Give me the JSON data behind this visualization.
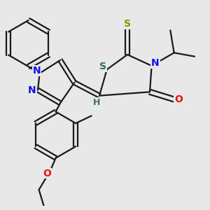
{
  "bg_color": "#e8e8e8",
  "bond_color": "#1a1a1a",
  "bond_width": 1.6,
  "atom_colors": {
    "N": "#1010ee",
    "O": "#ee1010",
    "S_thioxo": "#909000",
    "S_ring": "#207070",
    "H": "#407070",
    "C": "#1a1a1a"
  },
  "figsize": [
    3.0,
    3.0
  ],
  "dpi": 100
}
